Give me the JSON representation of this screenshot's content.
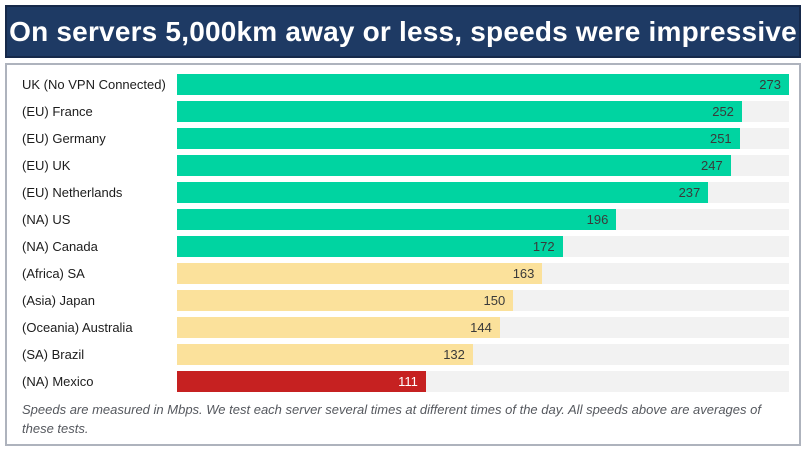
{
  "header": {
    "title": "On servers 5,000km away or less, speeds were impressive"
  },
  "footnote": "Speeds are measured in Mbps. We test each server several times at different times of the day. All speeds above are averages of these tests.",
  "palette": {
    "banner_bg": "#1e3a64",
    "banner_border": "#16294a",
    "panel_border": "#aeb3bd",
    "track_bg": "#f2f2f2",
    "green": "#00d4a1",
    "yellow": "#fbe19b",
    "red": "#c62121"
  },
  "chart_data": {
    "type": "bar",
    "orientation": "horizontal",
    "title": "On servers 5,000km away or less, speeds were impressive",
    "unit": "Mbps",
    "xlim": [
      0,
      273
    ],
    "grid": false,
    "legend": false,
    "categories": [
      "UK (No VPN Connected)",
      "(EU) France",
      "(EU) Germany",
      "(EU) UK",
      "(EU) Netherlands",
      "(NA) US",
      "(NA) Canada",
      "(Africa) SA",
      "(Asia) Japan",
      "(Oceania) Australia",
      "(SA) Brazil",
      "(NA) Mexico"
    ],
    "values": [
      273,
      252,
      251,
      247,
      237,
      196,
      172,
      163,
      150,
      144,
      132,
      111
    ],
    "bar_colors": [
      "green",
      "green",
      "green",
      "green",
      "green",
      "green",
      "green",
      "yellow",
      "yellow",
      "yellow",
      "yellow",
      "red"
    ]
  }
}
